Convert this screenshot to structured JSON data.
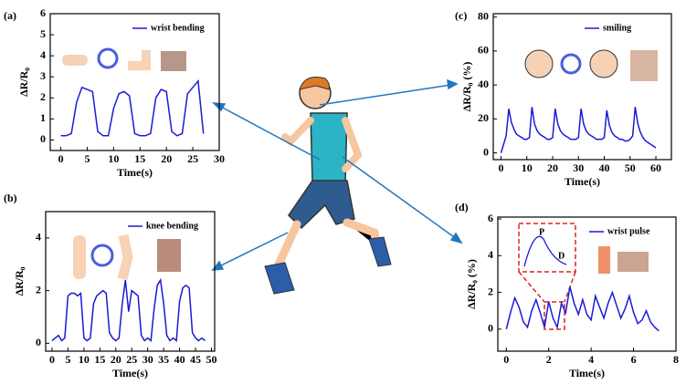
{
  "chart_data": [
    {
      "type": "line",
      "label": "(a)",
      "xlabel": "Time(s)",
      "ylabel": "ΔR/R₀",
      "legend": "upper right",
      "x": [
        0,
        1,
        2,
        3,
        4,
        5,
        6,
        7,
        8,
        9,
        10,
        11,
        12,
        13,
        14,
        15,
        16,
        17,
        18,
        19,
        20,
        21,
        22,
        23,
        24,
        25,
        26,
        27
      ],
      "series": [
        {
          "name": "wrist bending",
          "color": "#1a1ad8",
          "values": [
            0.2,
            0.2,
            0.3,
            1.8,
            2.5,
            2.4,
            2.3,
            0.4,
            0.2,
            0.2,
            1.5,
            2.2,
            2.3,
            2.1,
            0.3,
            0.2,
            0.2,
            0.3,
            2.0,
            2.4,
            2.3,
            0.4,
            0.2,
            0.3,
            2.2,
            2.5,
            2.8,
            0.3
          ]
        }
      ],
      "xlim": [
        -2,
        30
      ],
      "ylim": [
        -0.5,
        6
      ],
      "xticks": [
        0,
        5,
        10,
        15,
        20,
        25,
        30
      ],
      "yticks": [
        0,
        1,
        2,
        3,
        4,
        5,
        6
      ]
    },
    {
      "type": "line",
      "label": "(b)",
      "xlabel": "Time(s)",
      "ylabel": "ΔR/R₀",
      "legend": "upper right",
      "x": [
        0,
        1,
        2,
        3,
        4,
        5,
        6,
        7,
        8,
        9,
        10,
        11,
        12,
        13,
        14,
        15,
        16,
        17,
        18,
        19,
        20,
        21,
        22,
        23,
        24,
        25,
        26,
        27,
        28,
        29,
        30,
        31,
        32,
        33,
        34,
        35,
        36,
        37,
        38,
        39,
        40,
        41,
        42,
        43,
        44,
        45,
        46,
        47,
        48
      ],
      "series": [
        {
          "name": "knee bending",
          "color": "#1a1ad8",
          "values": [
            0.1,
            0.2,
            0.3,
            0.1,
            0.2,
            1.8,
            1.9,
            1.9,
            1.8,
            1.9,
            0.2,
            0.1,
            0.2,
            1.5,
            1.8,
            1.9,
            2.0,
            1.9,
            0.4,
            0.2,
            0.1,
            0.2,
            1.5,
            2.4,
            1.2,
            2.0,
            1.9,
            1.8,
            0.3,
            0.1,
            0.2,
            0.1,
            1.3,
            2.2,
            2.4,
            1.5,
            0.3,
            0.1,
            0.2,
            0.1,
            1.6,
            2.1,
            2.2,
            2.1,
            0.4,
            0.2,
            0.1,
            0.2,
            0.1
          ]
        }
      ],
      "xlim": [
        -2,
        51
      ],
      "ylim": [
        -0.3,
        5
      ],
      "xticks": [
        0,
        5,
        10,
        15,
        20,
        25,
        30,
        35,
        40,
        45,
        50
      ],
      "yticks": [
        0,
        2,
        4
      ]
    },
    {
      "type": "line",
      "label": "(c)",
      "xlabel": "Time(s)",
      "ylabel": "ΔR/R₀ (%)",
      "legend": "upper right",
      "x": [
        0,
        1,
        2,
        3,
        4,
        5,
        6,
        7,
        8,
        9,
        10,
        11,
        12,
        13,
        14,
        15,
        16,
        17,
        18,
        19,
        20,
        21,
        22,
        23,
        24,
        25,
        26,
        27,
        28,
        29,
        30,
        31,
        32,
        33,
        34,
        35,
        36,
        37,
        38,
        39,
        40,
        41,
        42,
        43,
        44,
        45,
        46,
        47,
        48,
        49,
        50,
        51,
        52,
        53,
        54,
        55,
        56,
        57,
        58,
        59,
        60
      ],
      "series": [
        {
          "name": "smiling",
          "color": "#1a1ad8",
          "values": [
            0,
            5,
            10,
            26,
            18,
            14,
            11,
            10,
            9,
            8,
            8,
            9,
            27,
            17,
            13,
            11,
            10,
            9,
            8,
            8,
            9,
            26,
            17,
            13,
            11,
            10,
            9,
            8,
            8,
            8,
            9,
            26,
            17,
            13,
            11,
            10,
            9,
            8,
            8,
            8,
            9,
            25,
            16,
            12,
            10,
            9,
            8,
            8,
            7,
            7,
            8,
            10,
            27,
            17,
            12,
            9,
            7,
            6,
            5,
            4,
            3
          ]
        }
      ],
      "xlim": [
        -3,
        66
      ],
      "ylim": [
        -4,
        82
      ],
      "xticks": [
        0,
        10,
        20,
        30,
        40,
        50,
        60
      ],
      "yticks": [
        0,
        20,
        40,
        60,
        80
      ]
    },
    {
      "type": "line",
      "label": "(d)",
      "xlabel": "Time(s)",
      "ylabel": "ΔR/R₀ (%)",
      "legend": "upper right",
      "annotations": [
        "P",
        "D"
      ],
      "x": [
        0,
        0.2,
        0.4,
        0.6,
        0.8,
        1.0,
        1.2,
        1.4,
        1.6,
        1.8,
        2.0,
        2.2,
        2.4,
        2.6,
        2.8,
        3.0,
        3.2,
        3.4,
        3.6,
        3.8,
        4.0,
        4.2,
        4.4,
        4.6,
        4.8,
        5.0,
        5.2,
        5.4,
        5.6,
        5.8,
        6.0,
        6.2,
        6.4,
        6.6,
        6.8,
        7.0,
        7.2
      ],
      "series": [
        {
          "name": "wrist pulse",
          "color": "#1a1ad8",
          "values": [
            0,
            0.9,
            1.7,
            1.2,
            0.4,
            0.1,
            1.0,
            1.6,
            0.9,
            0.1,
            1.5,
            0.6,
            0.1,
            1.4,
            0.9,
            2.3,
            1.4,
            0.8,
            1.6,
            0.8,
            0.5,
            1.8,
            1.2,
            0.6,
            1.4,
            2.0,
            1.3,
            0.6,
            1.1,
            1.8,
            0.9,
            0.3,
            0.5,
            1.0,
            0.4,
            0.1,
            -0.1
          ]
        }
      ],
      "xlim": [
        -0.4,
        8
      ],
      "ylim": [
        -1.2,
        6.1
      ],
      "xticks": [
        0,
        2,
        4,
        6,
        8
      ],
      "yticks": [
        0,
        2,
        4,
        6
      ]
    }
  ]
}
